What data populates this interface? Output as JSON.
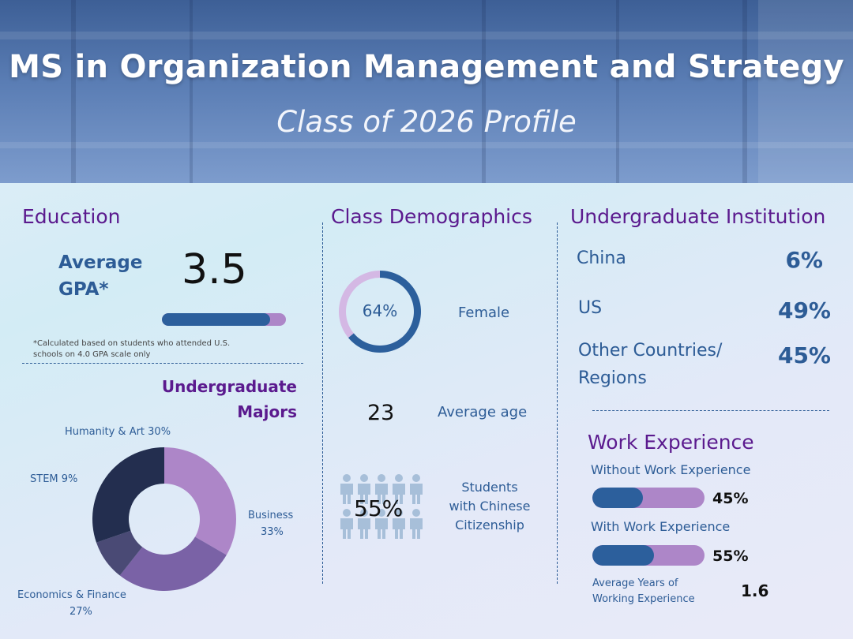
{
  "header": {
    "title": "MS in Organization Management and Strategy",
    "subtitle": "Class of 2026 Profile"
  },
  "education": {
    "title": "Education",
    "gpa_label_line1": "Average",
    "gpa_label_line2": "GPA*",
    "gpa_value": "3.5",
    "gpa_fraction": 0.875,
    "footnote_line1": "*Calculated based on students who attended U.S.",
    "footnote_line2": "schools on 4.0 GPA scale only"
  },
  "majors": {
    "title_line1": "Undergraduate",
    "title_line2": "Majors",
    "labels": {
      "humanity": "Humanity & Art 30%",
      "stem": "STEM 9%",
      "business_1": "Business",
      "business_2": "33%",
      "econ_1": "Economics & Finance",
      "econ_2": "27%"
    }
  },
  "demographics": {
    "title": "Class Demographics",
    "female_pct_label": "64%",
    "female_fraction": 0.64,
    "female_label": "Female",
    "age_value": "23",
    "age_label": "Average age",
    "citizenship_value": "55%",
    "citizenship_line1": "Students",
    "citizenship_line2": "with Chinese",
    "citizenship_line3": "Citizenship"
  },
  "institution": {
    "title": "Undergraduate Institution",
    "rows": [
      {
        "label": "China",
        "value": "6%"
      },
      {
        "label": "US",
        "value": "49%"
      },
      {
        "label_line1": "Other Countries/",
        "label_line2": "Regions",
        "value": "45%"
      }
    ]
  },
  "work": {
    "title": "Work Experience",
    "without_label": "Without Work Experience",
    "without_value": "45%",
    "without_fraction": 0.45,
    "with_label": "With Work Experience",
    "with_value": "55%",
    "with_fraction": 0.55,
    "years_label_line1": "Average Years of",
    "years_label_line2": "Working Experience",
    "years_value": "1.6"
  },
  "colors": {
    "accent_purple": "#5b1a8e",
    "accent_blue": "#2d5c96",
    "bar_fill": "#2c5f9c",
    "bar_track": "#ad86c8"
  },
  "chart_data": [
    {
      "type": "pie",
      "categories": [
        "Business",
        "Economics & Finance",
        "STEM",
        "Humanity & Art"
      ],
      "values": [
        33,
        27,
        9,
        30
      ],
      "colors": [
        "#ad86c8",
        "#7a62a6",
        "#4a4a75",
        "#232e4f"
      ]
    },
    {
      "type": "pie",
      "categories": [
        "Female",
        "Other"
      ],
      "values": [
        64,
        36
      ],
      "colors": [
        "#2c5f9c",
        "#d4b8e4"
      ]
    }
  ]
}
